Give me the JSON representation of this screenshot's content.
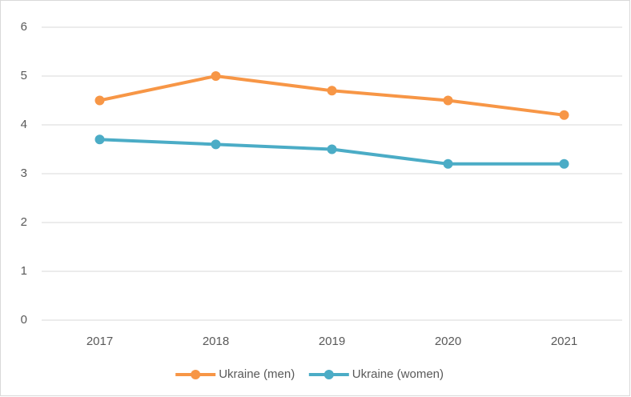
{
  "chart_data": {
    "type": "line",
    "categories": [
      "2017",
      "2018",
      "2019",
      "2020",
      "2021"
    ],
    "series": [
      {
        "name": "Ukraine (men)",
        "color": "#f79646",
        "values": [
          4.5,
          5.0,
          4.7,
          4.5,
          4.2
        ]
      },
      {
        "name": "Ukraine (women)",
        "color": "#4bacc6",
        "values": [
          3.7,
          3.6,
          3.5,
          3.2,
          3.2
        ]
      }
    ],
    "ylim": [
      0,
      6
    ],
    "yticks": [
      0,
      1,
      2,
      3,
      4,
      5,
      6
    ],
    "grid": true,
    "legend": "bottom"
  }
}
